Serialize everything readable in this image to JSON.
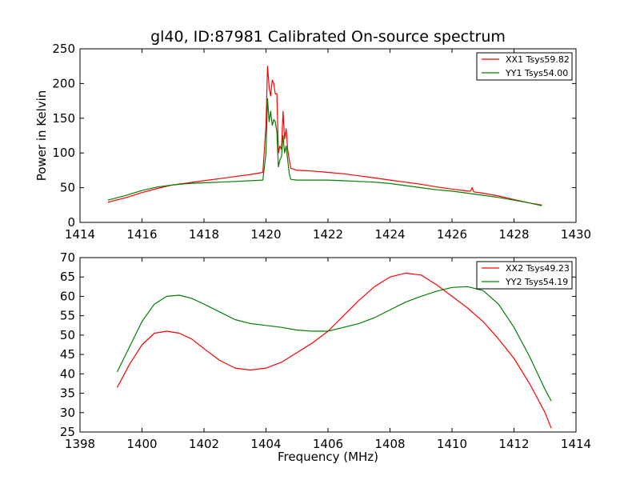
{
  "figure": {
    "title": "gl40, ID:87981 Calibrated On-source spectrum"
  },
  "chart_data": [
    {
      "type": "line",
      "title": "gl40, ID:87981 Calibrated On-source spectrum",
      "xlabel": "",
      "ylabel": "Power in Kelvin",
      "xlim": [
        1414,
        1430
      ],
      "ylim": [
        0,
        250
      ],
      "xticks": [
        "1414",
        "1416",
        "1418",
        "1420",
        "1422",
        "1424",
        "1426",
        "1428",
        "1430"
      ],
      "yticks": [
        "0",
        "50",
        "100",
        "150",
        "200",
        "250"
      ],
      "grid": false,
      "legend_position": "top-right",
      "series": [
        {
          "name": "XX1 Tsys59.82",
          "color": "#ff0000",
          "x": [
            1414.9,
            1415.5,
            1416.0,
            1416.5,
            1417.0,
            1417.5,
            1418.0,
            1418.5,
            1419.0,
            1419.5,
            1419.9,
            1420.0,
            1420.05,
            1420.1,
            1420.15,
            1420.2,
            1420.25,
            1420.3,
            1420.35,
            1420.4,
            1420.45,
            1420.5,
            1420.55,
            1420.6,
            1420.65,
            1420.7,
            1420.75,
            1420.8,
            1421.0,
            1421.5,
            1422.0,
            1422.5,
            1423.0,
            1423.5,
            1424.0,
            1424.5,
            1425.0,
            1425.5,
            1426.0,
            1426.5,
            1426.6,
            1426.65,
            1426.7,
            1427.0,
            1427.5,
            1428.0,
            1428.5,
            1428.9
          ],
          "values": [
            29,
            36,
            43,
            49,
            54,
            57,
            60,
            63,
            66,
            69,
            72,
            140,
            225,
            195,
            182,
            205,
            200,
            185,
            185,
            100,
            110,
            105,
            160,
            120,
            135,
            105,
            90,
            78,
            75,
            74,
            72,
            70,
            67,
            64,
            61,
            58,
            55,
            51,
            48,
            45,
            45,
            50,
            44,
            42,
            38,
            33,
            28,
            25
          ]
        },
        {
          "name": "YY1 Tsys54.00",
          "color": "#008000",
          "x": [
            1414.9,
            1415.5,
            1416.0,
            1416.5,
            1417.0,
            1417.5,
            1418.0,
            1418.5,
            1419.0,
            1419.5,
            1419.9,
            1420.0,
            1420.05,
            1420.1,
            1420.15,
            1420.2,
            1420.25,
            1420.3,
            1420.35,
            1420.4,
            1420.45,
            1420.5,
            1420.55,
            1420.6,
            1420.65,
            1420.7,
            1420.75,
            1420.8,
            1421.0,
            1421.5,
            1422.0,
            1422.5,
            1423.0,
            1423.5,
            1424.0,
            1424.5,
            1425.0,
            1425.5,
            1426.0,
            1426.5,
            1427.0,
            1427.5,
            1428.0,
            1428.5,
            1428.9
          ],
          "values": [
            32,
            39,
            46,
            51,
            54,
            56,
            57,
            58,
            59,
            60,
            61,
            100,
            178,
            145,
            160,
            140,
            148,
            145,
            130,
            80,
            90,
            95,
            125,
            100,
            110,
            90,
            70,
            62,
            61,
            61,
            61,
            60,
            59,
            58,
            56,
            53,
            50,
            47,
            45,
            42,
            39,
            36,
            32,
            28,
            24
          ]
        }
      ]
    },
    {
      "type": "line",
      "title": "",
      "xlabel": "Frequency (MHz)",
      "ylabel": "",
      "xlim": [
        1398,
        1414
      ],
      "ylim": [
        25,
        70
      ],
      "xticks": [
        "1398",
        "1400",
        "1402",
        "1404",
        "1406",
        "1408",
        "1410",
        "1412",
        "1414"
      ],
      "yticks": [
        "25",
        "30",
        "35",
        "40",
        "45",
        "50",
        "55",
        "60",
        "65",
        "70"
      ],
      "grid": false,
      "legend_position": "top-right",
      "series": [
        {
          "name": "XX2 Tsys49.23",
          "color": "#ff0000",
          "x": [
            1399.2,
            1399.6,
            1400.0,
            1400.4,
            1400.8,
            1401.2,
            1401.6,
            1402.0,
            1402.5,
            1403.0,
            1403.5,
            1404.0,
            1404.5,
            1405.0,
            1405.5,
            1406.0,
            1406.5,
            1407.0,
            1407.5,
            1408.0,
            1408.5,
            1409.0,
            1409.5,
            1410.0,
            1410.5,
            1411.0,
            1411.5,
            1412.0,
            1412.5,
            1413.0,
            1413.2
          ],
          "values": [
            36.5,
            42.5,
            47.5,
            50.5,
            51,
            50.5,
            49,
            46.5,
            43.5,
            41.5,
            41,
            41.5,
            43,
            45.5,
            48,
            51,
            55,
            59,
            62.5,
            65,
            66,
            65.5,
            63,
            60,
            57,
            53.5,
            49,
            44,
            37.5,
            30,
            26
          ]
        },
        {
          "name": "YY2 Tsys54.19",
          "color": "#008000",
          "x": [
            1399.2,
            1399.6,
            1400.0,
            1400.4,
            1400.8,
            1401.2,
            1401.6,
            1402.0,
            1402.5,
            1403.0,
            1403.5,
            1404.0,
            1404.5,
            1405.0,
            1405.5,
            1406.0,
            1406.5,
            1407.0,
            1407.5,
            1408.0,
            1408.5,
            1409.0,
            1409.5,
            1410.0,
            1410.5,
            1411.0,
            1411.5,
            1412.0,
            1412.5,
            1413.0,
            1413.2
          ],
          "values": [
            40.5,
            47,
            53.5,
            58,
            60,
            60.3,
            59.5,
            58,
            56,
            54,
            53,
            52.5,
            52,
            51.3,
            51,
            51,
            52,
            53,
            54.5,
            56.5,
            58.5,
            60,
            61.3,
            62.3,
            62.5,
            61.5,
            58,
            52,
            44.5,
            36,
            33
          ]
        }
      ]
    }
  ]
}
